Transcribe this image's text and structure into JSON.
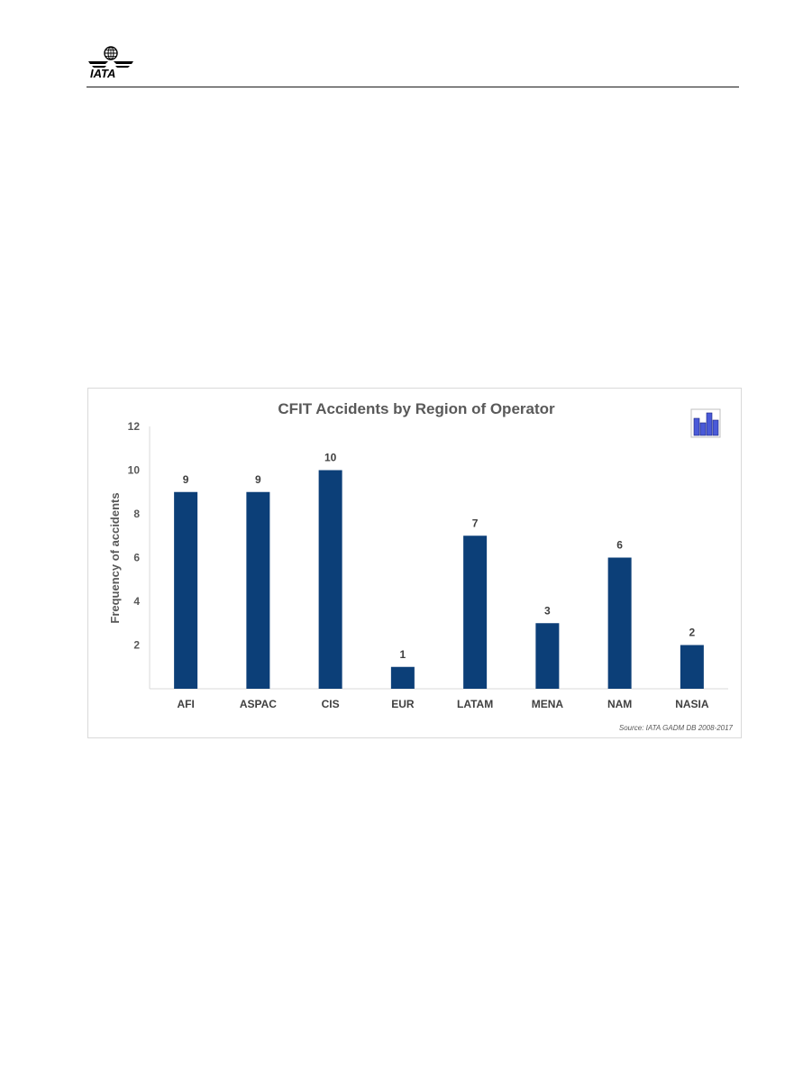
{
  "header": {
    "logo_text": "IATA"
  },
  "chart_data": {
    "type": "bar",
    "title": "CFIT Accidents by Region of Operator",
    "xlabel": "",
    "ylabel": "Frequency of accidents",
    "categories": [
      "AFI",
      "ASPAC",
      "CIS",
      "EUR",
      "LATAM",
      "MENA",
      "NAM",
      "NASIA"
    ],
    "values": [
      9,
      9,
      10,
      1,
      7,
      3,
      6,
      2
    ],
    "ylim": [
      0,
      12
    ],
    "yticks": [
      2,
      4,
      6,
      8,
      10,
      12
    ],
    "bar_color": "#0c3f78",
    "grid": false,
    "legend": "none",
    "source": "Source: IATA GADM DB 2008-2017"
  },
  "colors": {
    "bar": "#0c3f78",
    "text": "#595959",
    "frame": "#d9d9d9"
  },
  "icons": {
    "chart_icon": "bar-chart-icon"
  }
}
